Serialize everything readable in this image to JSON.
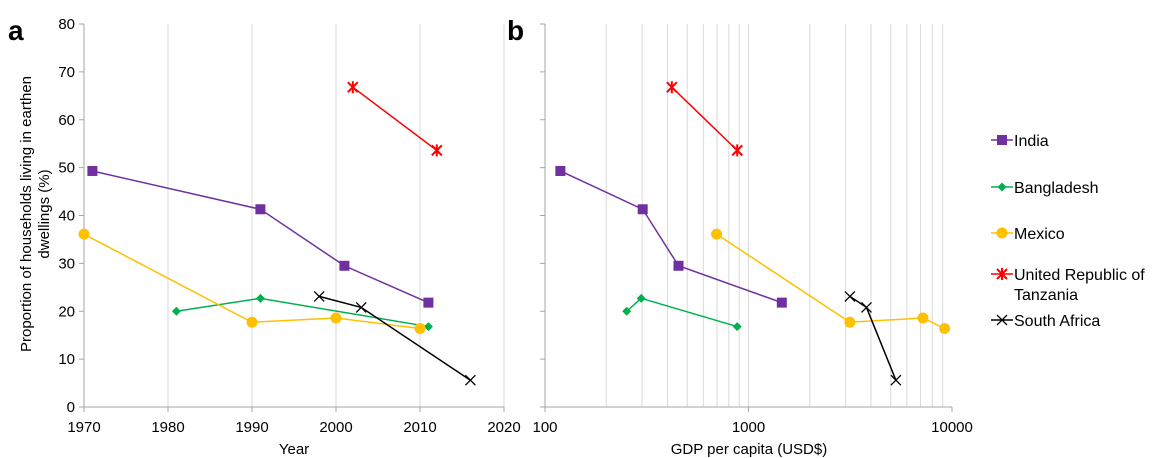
{
  "chart_data": [
    {
      "panel_label": "a",
      "type": "line",
      "xlabel": "Year",
      "ylabel": "Proportion of households living in earthen dwellings (%)",
      "ylabel_lines": [
        "Proportion of households living in earthen",
        "dwellings (%)"
      ],
      "xlim": [
        1970,
        2020
      ],
      "ylim": [
        0,
        80
      ],
      "xticks": [
        1970,
        1980,
        1990,
        2000,
        2010,
        2020
      ],
      "yticks": [
        0,
        10,
        20,
        30,
        40,
        50,
        60,
        70,
        80
      ],
      "grid": "vertical",
      "series": [
        {
          "name": "India",
          "x": [
            1971,
            1991,
            2001,
            2011
          ],
          "y": [
            49.3,
            41.3,
            29.5,
            21.8
          ]
        },
        {
          "name": "Bangladesh",
          "x": [
            1981,
            1991,
            2011
          ],
          "y": [
            20,
            22.7,
            16.8
          ]
        },
        {
          "name": "Mexico",
          "x": [
            1970,
            1990,
            2000,
            2010
          ],
          "y": [
            36.1,
            17.7,
            18.6,
            16.4
          ]
        },
        {
          "name": "United Republic of Tanzania",
          "x": [
            2002,
            2012
          ],
          "y": [
            66.8,
            53.6
          ]
        },
        {
          "name": "South Africa",
          "x": [
            1998,
            2003,
            2016
          ],
          "y": [
            23.1,
            20.8,
            5.6
          ]
        }
      ]
    },
    {
      "panel_label": "b",
      "type": "line",
      "xlabel": "GDP per capita (USD$)",
      "xscale": "log",
      "xlim": [
        100,
        10000
      ],
      "ylim": [
        0,
        80
      ],
      "xticks": [
        100,
        1000,
        10000
      ],
      "yticks": [
        0,
        10,
        20,
        30,
        40,
        50,
        60,
        70,
        80
      ],
      "grid": "vertical-log-minor",
      "series": [
        {
          "name": "India",
          "x": [
            119,
            302,
            453,
            1458
          ],
          "y": [
            49.3,
            41.3,
            29.5,
            21.8
          ]
        },
        {
          "name": "Bangladesh",
          "x": [
            252,
            297,
            880
          ],
          "y": [
            20,
            22.7,
            16.8
          ]
        },
        {
          "name": "Mexico",
          "x": [
            697,
            3150,
            7200,
            9200
          ],
          "y": [
            36.1,
            17.7,
            18.6,
            16.4
          ]
        },
        {
          "name": "United Republic of Tanzania",
          "x": [
            420,
            880
          ],
          "y": [
            66.8,
            53.6
          ]
        },
        {
          "name": "South Africa",
          "x": [
            3150,
            3800,
            5300
          ],
          "y": [
            23.1,
            20.8,
            5.6
          ]
        }
      ]
    }
  ],
  "legend": {
    "placement": "right",
    "entries": [
      {
        "series": "India",
        "lines": [
          "India"
        ],
        "color": "#7030A0",
        "marker": "square"
      },
      {
        "series": "Bangladesh",
        "lines": [
          "Bangladesh"
        ],
        "color": "#00B050",
        "marker": "diamond"
      },
      {
        "series": "Mexico",
        "lines": [
          "Mexico"
        ],
        "color": "#FFC000",
        "marker": "circle"
      },
      {
        "series": "United Republic of Tanzania",
        "lines": [
          "United Republic of",
          "Tanzania"
        ],
        "color": "#FF0000",
        "marker": "star"
      },
      {
        "series": "South Africa",
        "lines": [
          "South Africa"
        ],
        "color": "#000000",
        "marker": "x"
      }
    ]
  },
  "colors": {
    "India": "#7030A0",
    "Bangladesh": "#00B050",
    "Mexico": "#FFC000",
    "United Republic of Tanzania": "#FF0000",
    "South Africa": "#000000",
    "grid": "#D9D9D9",
    "axis": "#A6A6A6"
  }
}
